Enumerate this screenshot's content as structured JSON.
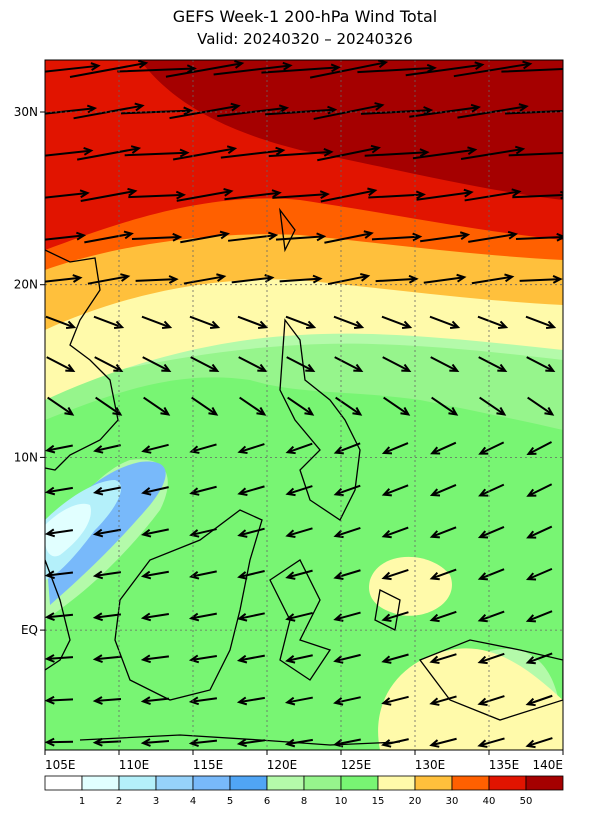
{
  "header": {
    "title": "GEFS Week-1 200-hPa Wind Total",
    "subtitle": "Valid: 20240320 – 20240326"
  },
  "map": {
    "lat_labels": [
      "30N",
      "20N",
      "10N",
      "EQ"
    ],
    "lon_labels": [
      "105E",
      "110E",
      "115E",
      "120E",
      "125E",
      "130E",
      "135E",
      "140E"
    ]
  },
  "colorbar": {
    "colors": [
      "#ffffff",
      "#e1ffff",
      "#b4f0fa",
      "#96d2fa",
      "#78b9fa",
      "#50a5f5",
      "#b4faaa",
      "#96f58c",
      "#78f573",
      "#fffaaa",
      "#ffc03c",
      "#ff6000",
      "#e11400",
      "#a50000"
    ],
    "labels": [
      1,
      2,
      3,
      4,
      5,
      6,
      8,
      10,
      15,
      20,
      30,
      40,
      50
    ]
  }
}
